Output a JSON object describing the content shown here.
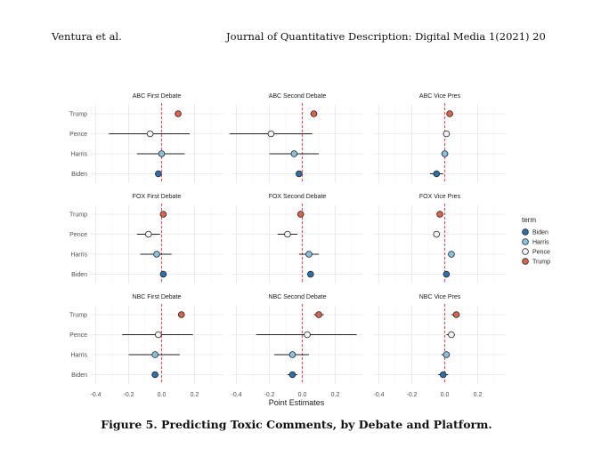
{
  "header": {
    "authors": "Ventura et al.",
    "journal": "Journal of Quantitative Description: Digital Media 1(2021) 20"
  },
  "caption": "Figure 5. Predicting Toxic Comments, by Debate and Platform.",
  "chart_data": {
    "type": "scatter",
    "xlabel": "Point Estimates",
    "xlim": [
      -0.43,
      0.37
    ],
    "x_ticks": [
      "-0.4",
      "-0.2",
      "0.0",
      "0.2"
    ],
    "x_tick_values": [
      -0.4,
      -0.2,
      0.0,
      0.2
    ],
    "reference_line": 0,
    "reference_line_color": "#e8545a",
    "categories": [
      "Trump",
      "Pence",
      "Harris",
      "Biden"
    ],
    "grid": true,
    "legend": {
      "title": "term",
      "placement": "right",
      "items": [
        {
          "label": "Biden",
          "color": "#2f6fa7"
        },
        {
          "label": "Harris",
          "color": "#8cc1de"
        },
        {
          "label": "Pence",
          "color": "#f2f2f2"
        },
        {
          "label": "Trump",
          "color": "#d9644e"
        }
      ]
    },
    "panels": [
      {
        "title": "ABC First Debate",
        "row": 0,
        "col": 0,
        "points": [
          {
            "term": "Trump",
            "estimate": 0.1,
            "low": 0.09,
            "high": 0.11
          },
          {
            "term": "Pence",
            "estimate": -0.07,
            "low": -0.32,
            "high": 0.17
          },
          {
            "term": "Harris",
            "estimate": 0.0,
            "low": -0.15,
            "high": 0.14
          },
          {
            "term": "Biden",
            "estimate": -0.02,
            "low": -0.04,
            "high": 0.0
          }
        ]
      },
      {
        "title": "ABC Second Debate",
        "row": 0,
        "col": 1,
        "points": [
          {
            "term": "Trump",
            "estimate": 0.07,
            "low": 0.05,
            "high": 0.09
          },
          {
            "term": "Pence",
            "estimate": -0.19,
            "low": -0.44,
            "high": 0.06
          },
          {
            "term": "Harris",
            "estimate": -0.05,
            "low": -0.2,
            "high": 0.1
          },
          {
            "term": "Biden",
            "estimate": -0.02,
            "low": -0.04,
            "high": 0.0
          }
        ]
      },
      {
        "title": "ABC Vice Pres",
        "row": 0,
        "col": 2,
        "points": [
          {
            "term": "Trump",
            "estimate": 0.03,
            "low": 0.01,
            "high": 0.05
          },
          {
            "term": "Pence",
            "estimate": 0.01,
            "low": -0.01,
            "high": 0.03
          },
          {
            "term": "Harris",
            "estimate": 0.0,
            "low": -0.02,
            "high": 0.02
          },
          {
            "term": "Biden",
            "estimate": -0.05,
            "low": -0.09,
            "high": -0.01
          }
        ]
      },
      {
        "title": "FOX First Debate",
        "row": 1,
        "col": 0,
        "points": [
          {
            "term": "Trump",
            "estimate": 0.01,
            "low": 0.0,
            "high": 0.02
          },
          {
            "term": "Pence",
            "estimate": -0.08,
            "low": -0.15,
            "high": -0.01
          },
          {
            "term": "Harris",
            "estimate": -0.03,
            "low": -0.13,
            "high": 0.06
          },
          {
            "term": "Biden",
            "estimate": 0.01,
            "low": 0.0,
            "high": 0.02
          }
        ]
      },
      {
        "title": "FOX Second Debate",
        "row": 1,
        "col": 1,
        "points": [
          {
            "term": "Trump",
            "estimate": -0.01,
            "low": -0.02,
            "high": 0.0
          },
          {
            "term": "Pence",
            "estimate": -0.09,
            "low": -0.15,
            "high": -0.03
          },
          {
            "term": "Harris",
            "estimate": 0.04,
            "low": -0.02,
            "high": 0.1
          },
          {
            "term": "Biden",
            "estimate": 0.05,
            "low": 0.04,
            "high": 0.06
          }
        ]
      },
      {
        "title": "FOX Vice Pres",
        "row": 1,
        "col": 2,
        "points": [
          {
            "term": "Trump",
            "estimate": -0.03,
            "low": -0.04,
            "high": -0.02
          },
          {
            "term": "Pence",
            "estimate": -0.05,
            "low": -0.06,
            "high": -0.04
          },
          {
            "term": "Harris",
            "estimate": 0.04,
            "low": 0.03,
            "high": 0.05
          },
          {
            "term": "Biden",
            "estimate": 0.01,
            "low": 0.0,
            "high": 0.02
          }
        ]
      },
      {
        "title": "NBC First Debate",
        "row": 2,
        "col": 0,
        "points": [
          {
            "term": "Trump",
            "estimate": 0.12,
            "low": 0.11,
            "high": 0.13
          },
          {
            "term": "Pence",
            "estimate": -0.02,
            "low": -0.24,
            "high": 0.19
          },
          {
            "term": "Harris",
            "estimate": -0.04,
            "low": -0.2,
            "high": 0.11
          },
          {
            "term": "Biden",
            "estimate": -0.04,
            "low": -0.06,
            "high": -0.02
          }
        ]
      },
      {
        "title": "NBC Second Debate",
        "row": 2,
        "col": 1,
        "points": [
          {
            "term": "Trump",
            "estimate": 0.1,
            "low": 0.07,
            "high": 0.13
          },
          {
            "term": "Pence",
            "estimate": 0.03,
            "low": -0.28,
            "high": 0.33
          },
          {
            "term": "Harris",
            "estimate": -0.06,
            "low": -0.17,
            "high": 0.04
          },
          {
            "term": "Biden",
            "estimate": -0.06,
            "low": -0.09,
            "high": -0.03
          }
        ]
      },
      {
        "title": "NBC Vice Pres",
        "row": 2,
        "col": 2,
        "points": [
          {
            "term": "Trump",
            "estimate": 0.07,
            "low": 0.04,
            "high": 0.09
          },
          {
            "term": "Pence",
            "estimate": 0.04,
            "low": 0.01,
            "high": 0.06
          },
          {
            "term": "Harris",
            "estimate": 0.01,
            "low": -0.02,
            "high": 0.03
          },
          {
            "term": "Biden",
            "estimate": -0.01,
            "low": -0.04,
            "high": 0.02
          }
        ]
      }
    ]
  }
}
